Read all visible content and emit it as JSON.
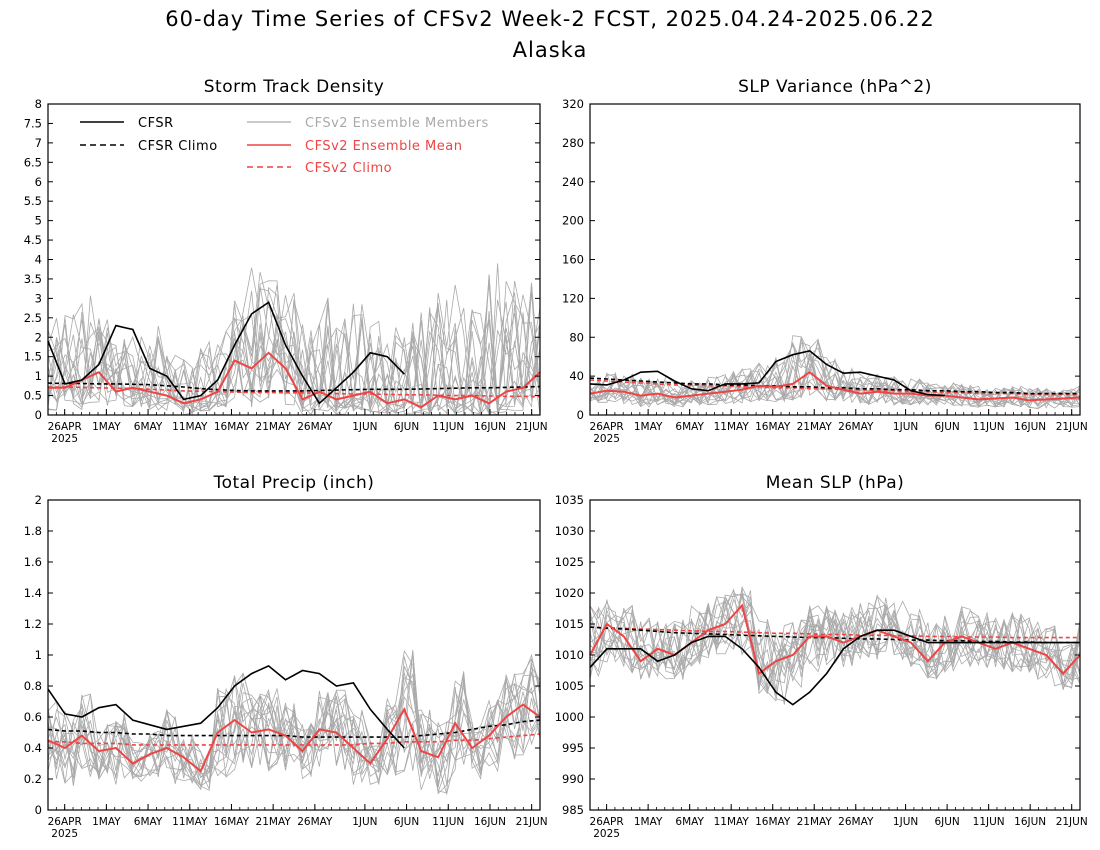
{
  "figure": {
    "title": "60-day Time Series of CFSv2 Week-2 FCST, 2025.04.24-2025.06.22",
    "subtitle": "Alaska"
  },
  "legend": {
    "cfsr": "CFSR",
    "cfsr_climo": "CFSR Climo",
    "members": "CFSv2 Ensemble Members",
    "mean": "CFSv2 Ensemble Mean",
    "climo": "CFSv2 Climo"
  },
  "colors": {
    "cfsr": "#000000",
    "members": "#aaaaaa",
    "mean": "#ee4444",
    "climo": "#ee4444"
  },
  "chart_data": [
    {
      "type": "line",
      "title": "Storm Track Density",
      "x": [
        "2025-04-24",
        "2025-04-26",
        "2025-04-28",
        "2025-04-30",
        "2025-05-02",
        "2025-05-04",
        "2025-05-06",
        "2025-05-08",
        "2025-05-10",
        "2025-05-12",
        "2025-05-14",
        "2025-05-16",
        "2025-05-18",
        "2025-05-20",
        "2025-05-22",
        "2025-05-24",
        "2025-05-26",
        "2025-05-28",
        "2025-05-30",
        "2025-06-01",
        "2025-06-03",
        "2025-06-05",
        "2025-06-07",
        "2025-06-09",
        "2025-06-11",
        "2025-06-13",
        "2025-06-15",
        "2025-06-17",
        "2025-06-19",
        "2025-06-21"
      ],
      "x_tick_labels": [
        "26APR",
        "1MAY",
        "6MAY",
        "11MAY",
        "16MAY",
        "21MAY",
        "26MAY",
        "1JUN",
        "6JUN",
        "11JUN",
        "16JUN",
        "21JUN"
      ],
      "x_year_label": "2025",
      "ylim": [
        0,
        8
      ],
      "y_ticks": [
        "0",
        "0.5",
        "1",
        "1.5",
        "2",
        "2.5",
        "3",
        "3.5",
        "4",
        "4.5",
        "5",
        "5.5",
        "6",
        "6.5",
        "7",
        "7.5",
        "8"
      ],
      "y_tick_values": [
        0,
        0.5,
        1,
        1.5,
        2,
        2.5,
        3,
        3.5,
        4,
        4.5,
        5,
        5.5,
        6,
        6.5,
        7,
        7.5,
        8
      ],
      "series": [
        {
          "name": "CFSR",
          "values": [
            1.9,
            0.8,
            0.9,
            1.3,
            2.3,
            2.2,
            1.2,
            1.0,
            0.4,
            0.5,
            0.9,
            1.8,
            2.6,
            2.9,
            1.8,
            1.0,
            0.3,
            0.7,
            1.1,
            1.6,
            1.5,
            1.05,
            null,
            null,
            null,
            null,
            null,
            null,
            null,
            null
          ]
        },
        {
          "name": "CFSR Climo",
          "values": [
            0.82,
            0.81,
            0.81,
            0.8,
            0.8,
            0.79,
            0.78,
            0.75,
            0.72,
            0.68,
            0.65,
            0.63,
            0.62,
            0.62,
            0.62,
            0.62,
            0.63,
            0.64,
            0.65,
            0.66,
            0.66,
            0.66,
            0.67,
            0.68,
            0.69,
            0.7,
            0.7,
            0.71,
            0.72,
            0.73
          ]
        },
        {
          "name": "CFSv2 Ensemble Mean",
          "values": [
            0.7,
            0.7,
            0.9,
            1.1,
            0.6,
            0.7,
            0.6,
            0.5,
            0.3,
            0.4,
            0.6,
            1.4,
            1.2,
            1.6,
            1.2,
            0.4,
            0.6,
            0.4,
            0.5,
            0.6,
            0.3,
            0.4,
            0.2,
            0.5,
            0.4,
            0.5,
            0.3,
            0.6,
            0.7,
            1.1
          ]
        },
        {
          "name": "CFSv2 Climo",
          "values": [
            0.72,
            0.72,
            0.71,
            0.7,
            0.69,
            0.68,
            0.66,
            0.64,
            0.62,
            0.61,
            0.6,
            0.59,
            0.58,
            0.58,
            0.57,
            0.57,
            0.56,
            0.55,
            0.54,
            0.54,
            0.53,
            0.52,
            0.52,
            0.51,
            0.5,
            0.5,
            0.49,
            0.48,
            0.48,
            0.47
          ]
        }
      ],
      "member_spread": {
        "min": [
          0.1,
          0.2,
          0.1,
          0.2,
          0.1,
          0.2,
          0.1,
          0.1,
          0.0,
          0.1,
          0.2,
          0.3,
          0.2,
          0.3,
          0.1,
          0.0,
          0.1,
          0.0,
          0.1,
          0.0,
          0.0,
          0.0,
          0.0,
          0.0,
          0.0,
          0.0,
          0.0,
          0.0,
          0.0,
          0.0
        ],
        "max": [
          2.5,
          2.6,
          3.2,
          2.6,
          2.2,
          2.4,
          2.3,
          1.6,
          1.5,
          2.0,
          2.3,
          3.0,
          3.8,
          3.6,
          3.2,
          2.4,
          3.5,
          2.5,
          3.0,
          2.5,
          2.4,
          2.4,
          3.0,
          3.4,
          3.4,
          2.8,
          4.2,
          3.5,
          3.5,
          3.0
        ]
      },
      "grid": false
    },
    {
      "type": "line",
      "title": "SLP Variance (hPa^2)",
      "x_tick_labels": [
        "26APR",
        "1MAY",
        "6MAY",
        "11MAY",
        "16MAY",
        "21MAY",
        "26MAY",
        "1JUN",
        "6JUN",
        "11JUN",
        "16JUN",
        "21JUN"
      ],
      "x_year_label": "2025",
      "ylim": [
        0,
        320
      ],
      "y_ticks": [
        "0",
        "40",
        "80",
        "120",
        "160",
        "200",
        "240",
        "280",
        "320"
      ],
      "y_tick_values": [
        0,
        40,
        80,
        120,
        160,
        200,
        240,
        280,
        320
      ],
      "series": [
        {
          "name": "CFSR",
          "values": [
            32,
            31,
            36,
            44,
            45,
            35,
            27,
            25,
            32,
            32,
            33,
            55,
            62,
            66,
            52,
            43,
            44,
            40,
            36,
            25,
            21,
            20,
            null,
            null,
            null,
            null,
            null,
            null,
            null,
            null
          ]
        },
        {
          "name": "CFSR Climo",
          "values": [
            38,
            37,
            36,
            35,
            34,
            33,
            32,
            32,
            31,
            31,
            30,
            30,
            29,
            29,
            28,
            28,
            27,
            27,
            26,
            26,
            25,
            25,
            24,
            24,
            23,
            23,
            22,
            22,
            22,
            22
          ]
        },
        {
          "name": "CFSv2 Ensemble Mean",
          "values": [
            22,
            25,
            24,
            20,
            22,
            18,
            20,
            22,
            24,
            26,
            30,
            29,
            32,
            44,
            30,
            26,
            22,
            24,
            22,
            22,
            20,
            20,
            18,
            16,
            17,
            18,
            15,
            16,
            17,
            18
          ]
        },
        {
          "name": "CFSv2 Climo",
          "values": [
            36,
            35,
            34,
            33,
            32,
            31,
            31,
            30,
            30,
            29,
            29,
            28,
            28,
            27,
            27,
            26,
            26,
            25,
            25,
            24,
            24,
            23,
            23,
            22,
            22,
            22,
            21,
            21,
            21,
            21
          ]
        }
      ],
      "member_spread": {
        "min": [
          10,
          12,
          10,
          8,
          10,
          8,
          10,
          10,
          10,
          12,
          14,
          12,
          14,
          20,
          14,
          12,
          10,
          12,
          10,
          10,
          10,
          10,
          8,
          6,
          8,
          8,
          6,
          6,
          8,
          8
        ],
        "max": [
          40,
          45,
          42,
          38,
          40,
          34,
          36,
          40,
          46,
          50,
          55,
          60,
          86,
          82,
          60,
          50,
          42,
          44,
          40,
          38,
          34,
          34,
          32,
          30,
          30,
          30,
          28,
          28,
          28,
          32
        ]
      },
      "grid": false
    },
    {
      "type": "line",
      "title": "Total Precip (inch)",
      "x_tick_labels": [
        "26APR",
        "1MAY",
        "6MAY",
        "11MAY",
        "16MAY",
        "21MAY",
        "26MAY",
        "1JUN",
        "6JUN",
        "11JUN",
        "16JUN",
        "21JUN"
      ],
      "x_year_label": "2025",
      "ylim": [
        0,
        2
      ],
      "y_ticks": [
        "0",
        "0.2",
        "0.4",
        "0.6",
        "0.8",
        "1",
        "1.2",
        "1.4",
        "1.6",
        "1.8",
        "2"
      ],
      "y_tick_values": [
        0,
        0.2,
        0.4,
        0.6,
        0.8,
        1,
        1.2,
        1.4,
        1.6,
        1.8,
        2
      ],
      "series": [
        {
          "name": "CFSR",
          "values": [
            0.78,
            0.62,
            0.6,
            0.66,
            0.68,
            0.58,
            0.55,
            0.52,
            0.54,
            0.56,
            0.66,
            0.8,
            0.88,
            0.93,
            0.84,
            0.9,
            0.88,
            0.8,
            0.82,
            0.65,
            0.52,
            0.4,
            null,
            null,
            null,
            null,
            null,
            null,
            null,
            null
          ]
        },
        {
          "name": "CFSR Climo",
          "values": [
            0.52,
            0.51,
            0.51,
            0.5,
            0.5,
            0.49,
            0.49,
            0.48,
            0.48,
            0.48,
            0.48,
            0.48,
            0.48,
            0.48,
            0.48,
            0.47,
            0.47,
            0.47,
            0.47,
            0.47,
            0.47,
            0.47,
            0.48,
            0.49,
            0.5,
            0.52,
            0.54,
            0.55,
            0.57,
            0.58
          ]
        },
        {
          "name": "CFSv2 Ensemble Mean",
          "values": [
            0.45,
            0.4,
            0.48,
            0.38,
            0.4,
            0.3,
            0.36,
            0.4,
            0.34,
            0.25,
            0.5,
            0.58,
            0.5,
            0.52,
            0.48,
            0.38,
            0.52,
            0.5,
            0.4,
            0.3,
            0.46,
            0.65,
            0.38,
            0.34,
            0.56,
            0.4,
            0.48,
            0.6,
            0.68,
            0.6
          ]
        },
        {
          "name": "CFSv2 Climo",
          "values": [
            0.44,
            0.44,
            0.43,
            0.43,
            0.43,
            0.42,
            0.42,
            0.42,
            0.42,
            0.42,
            0.42,
            0.42,
            0.42,
            0.42,
            0.42,
            0.42,
            0.42,
            0.42,
            0.42,
            0.43,
            0.43,
            0.44,
            0.44,
            0.44,
            0.45,
            0.45,
            0.46,
            0.47,
            0.48,
            0.49
          ]
        }
      ],
      "member_spread": {
        "min": [
          0.2,
          0.15,
          0.2,
          0.2,
          0.15,
          0.15,
          0.2,
          0.15,
          0.15,
          0.12,
          0.2,
          0.25,
          0.25,
          0.25,
          0.25,
          0.2,
          0.25,
          0.2,
          0.15,
          0.15,
          0.2,
          0.25,
          0.1,
          0.1,
          0.2,
          0.2,
          0.25,
          0.3,
          0.35,
          0.35
        ]
      },
      "grid": false
    },
    {
      "type": "line",
      "title": "Mean SLP (hPa)",
      "x_tick_labels": [
        "26APR",
        "1MAY",
        "6MAY",
        "11MAY",
        "16MAY",
        "21MAY",
        "26MAY",
        "1JUN",
        "6JUN",
        "11JUN",
        "16JUN",
        "21JUN"
      ],
      "x_year_label": "2025",
      "ylim": [
        985,
        1035
      ],
      "y_ticks": [
        "985",
        "990",
        "995",
        "1000",
        "1005",
        "1010",
        "1015",
        "1020",
        "1025",
        "1030",
        "1035"
      ],
      "y_tick_values": [
        985,
        990,
        995,
        1000,
        1005,
        1010,
        1015,
        1020,
        1025,
        1030,
        1035
      ],
      "series": [
        {
          "name": "CFSR",
          "values": [
            1008,
            1011,
            1011,
            1011,
            1009,
            1010,
            1012,
            1013,
            1013,
            1011,
            1008,
            1004,
            1002,
            1004,
            1007,
            1011,
            1013,
            1014,
            1014,
            1013,
            1012,
            1012,
            1012,
            1012,
            1012,
            1012,
            1012,
            1012,
            1012,
            1012
          ]
        },
        {
          "name": "CFSR Climo",
          "values": [
            1014.5,
            1014.3,
            1014.2,
            1014.0,
            1013.8,
            1013.6,
            1013.5,
            1013.4,
            1013.3,
            1013.2,
            1013.1,
            1013.0,
            1012.9,
            1012.8,
            1012.8,
            1012.7,
            1012.6,
            1012.6,
            1012.5,
            1012.4,
            1012.4,
            1012.3,
            1012.3,
            1012.2,
            1012.2,
            1012.1,
            1012.1,
            1012.0,
            1012.0,
            1012.0
          ]
        },
        {
          "name": "CFSv2 Ensemble Mean",
          "values": [
            1010,
            1015,
            1013,
            1009,
            1011,
            1010,
            1012,
            1014,
            1015,
            1018,
            1007,
            1009,
            1010,
            1013,
            1013,
            1012,
            1013,
            1014,
            1013,
            1012,
            1009,
            1012,
            1013,
            1012,
            1011,
            1012,
            1011,
            1010,
            1007,
            1010
          ]
        },
        {
          "name": "CFSv2 Climo",
          "values": [
            1014.5,
            1014.4,
            1014.3,
            1014.2,
            1014.1,
            1014.0,
            1013.9,
            1013.8,
            1013.8,
            1013.7,
            1013.6,
            1013.5,
            1013.5,
            1013.4,
            1013.3,
            1013.3,
            1013.2,
            1013.2,
            1013.1,
            1013.1,
            1013.0,
            1013.0,
            1012.9,
            1012.9,
            1012.9,
            1012.8,
            1012.8,
            1012.8,
            1012.8,
            1012.8
          ]
        }
      ],
      "member_spread": {
        "min": [
          1006,
          1008,
          1007,
          1006,
          1006,
          1006,
          1008,
          1009,
          1010,
          1010,
          1003,
          1002,
          1004,
          1007,
          1008,
          1008,
          1009,
          1009,
          1009,
          1008,
          1006,
          1007,
          1008,
          1007,
          1007,
          1007,
          1006,
          1005,
          1004,
          1005
        ],
        "max": [
          1018,
          1019,
          1018,
          1016,
          1016,
          1016,
          1018,
          1020,
          1021,
          1021,
          1016,
          1015,
          1016,
          1018,
          1018,
          1018,
          1019,
          1020,
          1019,
          1018,
          1016,
          1017,
          1018,
          1017,
          1016,
          1017,
          1016,
          1015,
          1013,
          1016
        ]
      },
      "grid": false
    }
  ]
}
